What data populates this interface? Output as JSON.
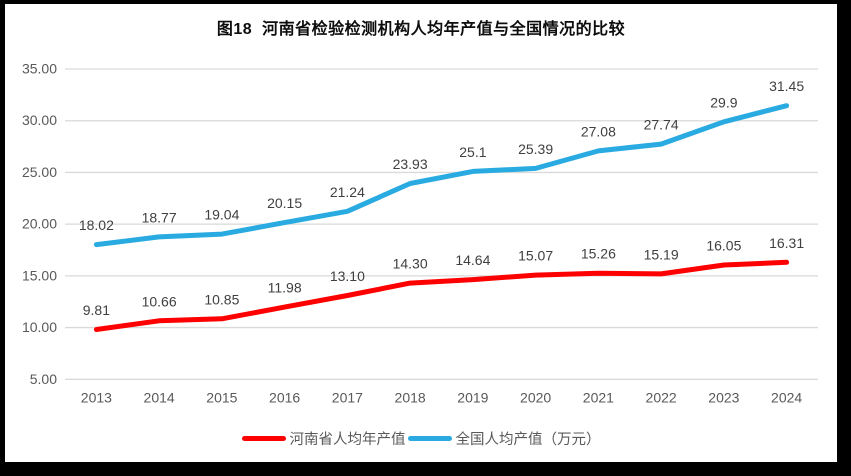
{
  "title": "图18  河南省检验检测机构人均年产值与全国情况的比较",
  "colors": {
    "frame_border": "#000000",
    "surface_background": "#ffffff",
    "gridline": "#d9d9d9",
    "axis_label": "#595959",
    "data_label": "#404040",
    "title_text": "#0d0d0d"
  },
  "chart_data": {
    "type": "line",
    "title": "图18  河南省检验检测机构人均年产值与全国情况的比较",
    "categories": [
      "2013",
      "2014",
      "2015",
      "2016",
      "2017",
      "2018",
      "2019",
      "2020",
      "2021",
      "2022",
      "2023",
      "2024"
    ],
    "series": [
      {
        "name": "河南省人均年产值",
        "color": "#ff0000",
        "values": [
          9.81,
          10.66,
          10.85,
          11.98,
          13.1,
          14.3,
          14.64,
          15.07,
          15.26,
          15.19,
          16.05,
          16.31
        ],
        "labels": [
          "9.81",
          "10.66",
          "10.85",
          "11.98",
          "13.10",
          "14.30",
          "14.64",
          "15.07",
          "15.26",
          "15.19",
          "16.05",
          "16.31"
        ]
      },
      {
        "name": "全国人均产值（万元）",
        "color": "#29abe2",
        "values": [
          18.02,
          18.77,
          19.04,
          20.15,
          21.24,
          23.93,
          25.1,
          25.39,
          27.08,
          27.74,
          29.9,
          31.45
        ],
        "labels": [
          "18.02",
          "18.77",
          "19.04",
          "20.15",
          "21.24",
          "23.93",
          "25.1",
          "25.39",
          "27.08",
          "27.74",
          "29.9",
          "31.45"
        ]
      }
    ],
    "xlabel": "",
    "ylabel": "",
    "ylim": [
      5,
      35
    ],
    "ytick_step": 5,
    "ytick_labels": [
      "5.00",
      "10.00",
      "15.00",
      "20.00",
      "25.00",
      "30.00",
      "35.00"
    ],
    "grid": true,
    "legend_position": "bottom",
    "data_labels_shown": true
  },
  "legend": {
    "items": [
      {
        "label": "河南省人均年产值",
        "color": "#ff0000"
      },
      {
        "label": "全国人均产值（万元）",
        "color": "#29abe2"
      }
    ]
  }
}
